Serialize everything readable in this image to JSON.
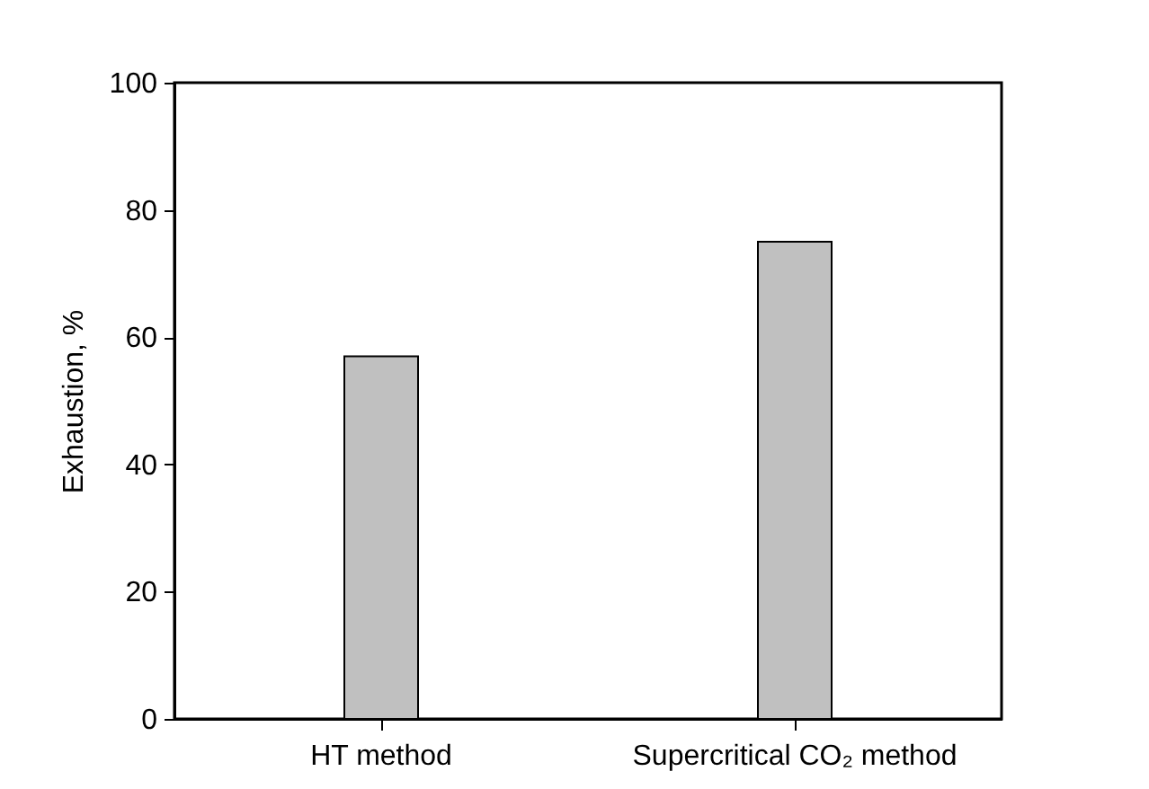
{
  "chart_data": {
    "type": "bar",
    "ylabel": "Exhaustion, %",
    "categories": [
      "HT method",
      "Supercritical CO₂ method"
    ],
    "values": [
      57,
      75
    ],
    "color": "#c0c0c0",
    "ylim": [
      0,
      100
    ],
    "yticks": [
      0,
      20,
      40,
      60,
      80,
      100
    ],
    "grid": false
  }
}
